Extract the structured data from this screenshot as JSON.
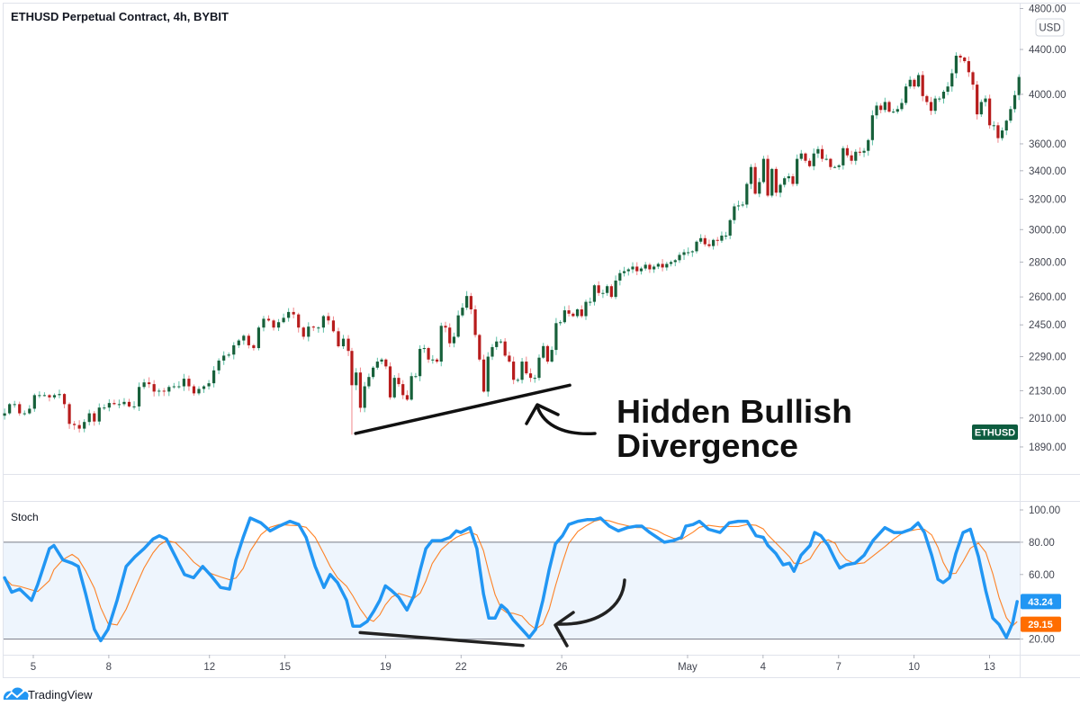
{
  "header": {
    "title": "ETHUSD Perpetual Contract, 4h, BYBIT",
    "currency": "USD"
  },
  "symbol_tag": {
    "label": "ETHUSD",
    "color": "#0d5c3f"
  },
  "indicator": {
    "name": "Stoch",
    "k_value": "43.24",
    "d_value": "29.15",
    "k_color": "#2196f3",
    "d_color": "#ff6d00"
  },
  "annotation": {
    "line1": "Hidden Bullish",
    "line2": "Divergence"
  },
  "branding": {
    "logo_text": "TradingView"
  },
  "chart_data": [
    {
      "type": "candlestick",
      "title": "ETHUSD Perpetual Contract, 4h, BYBIT",
      "scale": "log",
      "y_ticks": [
        "4800.00",
        "4400.00",
        "4000.00",
        "3600.00",
        "3400.00",
        "3200.00",
        "3000.00",
        "2800.00",
        "2600.00",
        "2450.00",
        "2290.00",
        "2130.00",
        "2010.00",
        "1890.00"
      ],
      "x_ticks": [
        {
          "label": "5",
          "day": 5
        },
        {
          "label": "8",
          "day": 8
        },
        {
          "label": "12",
          "day": 12
        },
        {
          "label": "15",
          "day": 15
        },
        {
          "label": "19",
          "day": 19
        },
        {
          "label": "22",
          "day": 22
        },
        {
          "label": "26",
          "day": 26
        },
        {
          "label": "May",
          "day": 31
        },
        {
          "label": "4",
          "day": 34
        },
        {
          "label": "7",
          "day": 37
        },
        {
          "label": "10",
          "day": 40
        },
        {
          "label": "13",
          "day": 43
        }
      ],
      "up_color": "#17603a",
      "down_color": "#b71c1c",
      "segments": [
        {
          "start_day": 3.86,
          "end_day": 17.52,
          "closes": [
            2030,
            2070,
            2070,
            2030,
            2030,
            2050,
            2110,
            2110,
            2110,
            2100,
            2110,
            2115,
            2070,
            1985,
            1980,
            1965,
            1993,
            2030,
            1995,
            2055,
            2055,
            2075,
            2070,
            2070,
            2080,
            2060,
            2060,
            2147,
            2168,
            2160,
            2126,
            2130,
            2126,
            2147,
            2150,
            2150,
            2185,
            2150,
            2118,
            2138,
            2150,
            2164,
            2224,
            2271,
            2295,
            2300,
            2346,
            2370,
            2394,
            2346,
            2332,
            2436,
            2482,
            2473,
            2436,
            2464,
            2487,
            2518,
            2505,
            2436,
            2389,
            2441,
            2436,
            2436,
            2496,
            2473,
            2417,
            2341,
            2379,
            2318
          ]
        },
        {
          "start_day": 17.66,
          "end_day": 30.68,
          "low_overrides": {
            "0": 1940
          },
          "closes": [
            2155,
            2214,
            2054,
            2150,
            2193,
            2237,
            2266,
            2276,
            2243,
            2100,
            2189,
            2160,
            2110,
            2090,
            2197,
            2197,
            2328,
            2332,
            2276,
            2276,
            2266,
            2445,
            2436,
            2356,
            2389,
            2500,
            2541,
            2605,
            2532,
            2398,
            2276,
            2126,
            2290,
            2337,
            2365,
            2365,
            2295,
            2266,
            2180,
            2180,
            2266,
            2210,
            2189,
            2189,
            2285,
            2342,
            2266,
            2323,
            2459,
            2464,
            2527,
            2509,
            2496,
            2532,
            2496,
            2573,
            2573,
            2665,
            2622,
            2622,
            2660,
            2600,
            2692,
            2735,
            2746,
            2757,
            2773,
            2746,
            2762,
            2784,
            2757,
            2773,
            2789,
            2768,
            2789,
            2800,
            2811,
            2843
          ]
        },
        {
          "start_day": 30.86,
          "end_day": 44.17,
          "closes": [
            2859,
            2859,
            2865,
            2924,
            2946,
            2908,
            2897,
            2935,
            2930,
            2962,
            2962,
            3061,
            3152,
            3158,
            3164,
            3306,
            3427,
            3238,
            3319,
            3487,
            3225,
            3413,
            3245,
            3300,
            3346,
            3360,
            3306,
            3487,
            3527,
            3473,
            3433,
            3527,
            3560,
            3487,
            3487,
            3427,
            3427,
            3439,
            3567,
            3513,
            3473,
            3540,
            3533,
            3547,
            3629,
            3825,
            3905,
            3869,
            3935,
            3855,
            3855,
            3876,
            3927,
            4067,
            4125,
            4067,
            4167,
            3985,
            3935,
            3862,
            3964,
            3964,
            4022,
            4067,
            4183,
            4342,
            4325,
            4292,
            4192,
            4083,
            3833,
            3935,
            3964,
            3745,
            3745,
            3644,
            3704,
            3782,
            3876,
            3993,
            4150
          ]
        }
      ],
      "trendline": {
        "from": {
          "day": 17.81,
          "price": 1945
        },
        "to": {
          "day": 26.32,
          "price": 2155
        }
      }
    },
    {
      "type": "line",
      "title": "Stoch",
      "ylim": [
        0,
        100
      ],
      "y_ticks": [
        "100.00",
        "80.00",
        "60.00",
        "20.00"
      ],
      "bands": {
        "upper": 80,
        "lower": 20
      },
      "d_smoothing": 4,
      "k_series": [
        [
          3.86,
          58
        ],
        [
          4.14,
          49
        ],
        [
          4.46,
          51
        ],
        [
          4.93,
          44
        ],
        [
          5.18,
          54
        ],
        [
          5.64,
          76
        ],
        [
          5.82,
          78
        ],
        [
          6.18,
          69
        ],
        [
          6.54,
          67
        ],
        [
          6.79,
          65
        ],
        [
          7.08,
          48
        ],
        [
          7.43,
          26
        ],
        [
          7.68,
          19
        ],
        [
          7.97,
          26
        ],
        [
          8.33,
          44
        ],
        [
          8.69,
          65
        ],
        [
          9.04,
          71
        ],
        [
          9.4,
          76
        ],
        [
          9.76,
          82
        ],
        [
          10.01,
          84
        ],
        [
          10.29,
          82
        ],
        [
          10.65,
          71
        ],
        [
          11.01,
          60
        ],
        [
          11.37,
          58
        ],
        [
          11.73,
          65
        ],
        [
          12.08,
          59
        ],
        [
          12.44,
          52
        ],
        [
          12.8,
          51
        ],
        [
          13.05,
          69
        ],
        [
          13.34,
          83
        ],
        [
          13.62,
          95
        ],
        [
          14.05,
          92
        ],
        [
          14.41,
          87
        ],
        [
          14.77,
          90
        ],
        [
          15.2,
          93
        ],
        [
          15.55,
          91
        ],
        [
          15.84,
          83
        ],
        [
          16.2,
          65
        ],
        [
          16.55,
          52
        ],
        [
          16.8,
          60
        ],
        [
          17.09,
          55
        ],
        [
          17.45,
          44
        ],
        [
          17.7,
          28
        ],
        [
          17.99,
          28
        ],
        [
          18.27,
          31
        ],
        [
          18.52,
          37
        ],
        [
          18.77,
          44
        ],
        [
          18.99,
          53
        ],
        [
          19.24,
          50
        ],
        [
          19.52,
          46
        ],
        [
          19.85,
          38
        ],
        [
          20.13,
          47
        ],
        [
          20.38,
          63
        ],
        [
          20.6,
          76
        ],
        [
          20.85,
          81
        ],
        [
          21.21,
          81
        ],
        [
          21.56,
          83
        ],
        [
          21.81,
          87
        ],
        [
          21.99,
          86
        ],
        [
          22.35,
          89
        ],
        [
          22.63,
          76
        ],
        [
          22.89,
          48
        ],
        [
          23.1,
          33
        ],
        [
          23.35,
          33
        ],
        [
          23.6,
          41
        ],
        [
          23.82,
          38
        ],
        [
          24.07,
          32
        ],
        [
          24.42,
          26
        ],
        [
          24.71,
          21
        ],
        [
          24.96,
          26
        ],
        [
          25.25,
          44
        ],
        [
          25.5,
          63
        ],
        [
          25.75,
          79
        ],
        [
          26.03,
          84
        ],
        [
          26.28,
          91
        ],
        [
          26.64,
          93
        ],
        [
          27.0,
          94
        ],
        [
          27.29,
          94
        ],
        [
          27.54,
          95
        ],
        [
          27.89,
          90
        ],
        [
          28.25,
          87
        ],
        [
          28.61,
          89
        ],
        [
          28.97,
          90
        ],
        [
          29.18,
          90
        ],
        [
          29.5,
          86
        ],
        [
          29.79,
          83
        ],
        [
          30.08,
          80
        ],
        [
          30.43,
          81
        ],
        [
          30.76,
          83
        ],
        [
          30.93,
          90
        ],
        [
          31.22,
          91
        ],
        [
          31.47,
          93
        ],
        [
          31.83,
          88
        ],
        [
          32.29,
          86
        ],
        [
          32.65,
          92
        ],
        [
          33.01,
          93
        ],
        [
          33.37,
          93
        ],
        [
          33.72,
          84
        ],
        [
          34.01,
          83
        ],
        [
          34.19,
          78
        ],
        [
          34.51,
          73
        ],
        [
          34.8,
          66
        ],
        [
          35.05,
          67
        ],
        [
          35.23,
          62
        ],
        [
          35.51,
          72
        ],
        [
          35.87,
          78
        ],
        [
          36.05,
          86
        ],
        [
          36.3,
          84
        ],
        [
          36.59,
          78
        ],
        [
          36.87,
          69
        ],
        [
          37.05,
          64
        ],
        [
          37.3,
          66
        ],
        [
          37.66,
          67
        ],
        [
          38.02,
          72
        ],
        [
          38.37,
          81
        ],
        [
          38.84,
          89
        ],
        [
          39.2,
          86
        ],
        [
          39.52,
          86
        ],
        [
          39.88,
          88
        ],
        [
          40.16,
          92
        ],
        [
          40.41,
          86
        ],
        [
          40.7,
          72
        ],
        [
          40.95,
          57
        ],
        [
          41.16,
          55
        ],
        [
          41.41,
          58
        ],
        [
          41.66,
          73
        ],
        [
          41.95,
          86
        ],
        [
          42.24,
          88
        ],
        [
          42.56,
          71
        ],
        [
          42.85,
          50
        ],
        [
          43.13,
          33
        ],
        [
          43.38,
          29
        ],
        [
          43.67,
          21
        ],
        [
          43.92,
          30
        ],
        [
          44.1,
          43.24
        ]
      ],
      "trendline": {
        "from": {
          "day": 17.99,
          "value": 24
        },
        "to": {
          "day": 24.46,
          "value": 16
        }
      }
    }
  ]
}
